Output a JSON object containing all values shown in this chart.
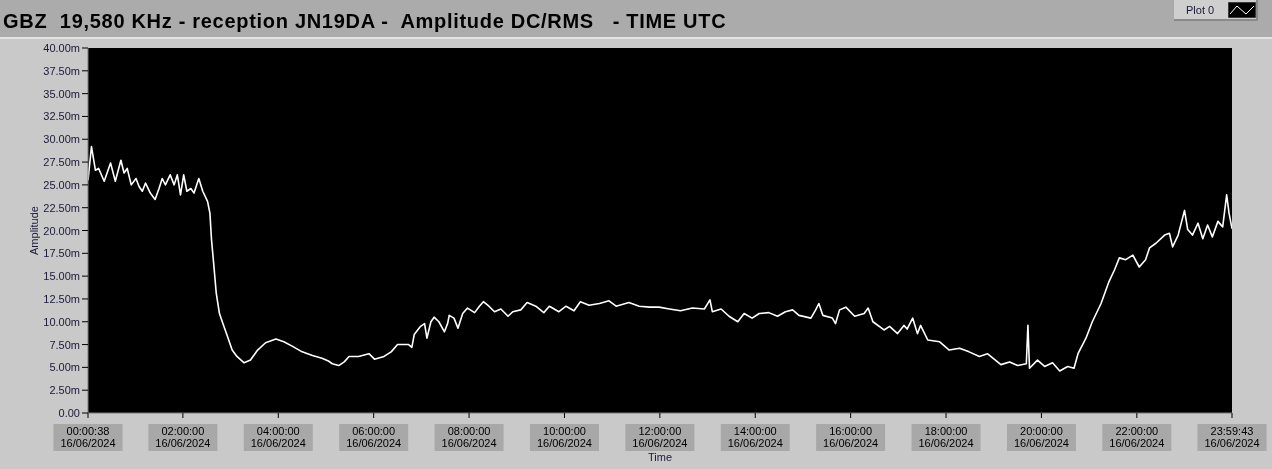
{
  "chart_data": {
    "type": "line",
    "title": "GBZ  19,580 KHz - reception JN19DA -  Amplitude DC/RMS   - TIME UTC",
    "xlabel": "Time",
    "ylabel": "Amplitude",
    "x": [
      "2024-06-16T00:00:38",
      "2024-06-16T00:05",
      "2024-06-16T00:10",
      "2024-06-16T00:14",
      "2024-06-16T00:21",
      "2024-06-16T00:29",
      "2024-06-16T00:35",
      "2024-06-16T00:42",
      "2024-06-16T00:46",
      "2024-06-16T00:50",
      "2024-06-16T00:55",
      "2024-06-16T01:01",
      "2024-06-16T01:05",
      "2024-06-16T01:09",
      "2024-06-16T01:13",
      "2024-06-16T01:19",
      "2024-06-16T01:25",
      "2024-06-16T01:30",
      "2024-06-16T01:34",
      "2024-06-16T01:38",
      "2024-06-16T01:44",
      "2024-06-16T01:49",
      "2024-06-16T01:53",
      "2024-06-16T01:57",
      "2024-06-16T02:01",
      "2024-06-16T02:05",
      "2024-06-16T02:10",
      "2024-06-16T02:14",
      "2024-06-16T02:20",
      "2024-06-16T02:25",
      "2024-06-16T02:31",
      "2024-06-16T02:34",
      "2024-06-16T02:36",
      "2024-06-16T02:39",
      "2024-06-16T02:42",
      "2024-06-16T02:46",
      "2024-06-16T02:50",
      "2024-06-16T02:56",
      "2024-06-16T03:02",
      "2024-06-16T03:08",
      "2024-06-16T03:17",
      "2024-06-16T03:25",
      "2024-06-16T03:34",
      "2024-06-16T03:44",
      "2024-06-16T03:57",
      "2024-06-16T04:07",
      "2024-06-16T04:18",
      "2024-06-16T04:30",
      "2024-06-16T04:43",
      "2024-06-16T04:55",
      "2024-06-16T05:03",
      "2024-06-16T05:08",
      "2024-06-16T05:16",
      "2024-06-16T05:23",
      "2024-06-16T05:29",
      "2024-06-16T05:41",
      "2024-06-16T05:54",
      "2024-06-16T06:01",
      "2024-06-16T06:13",
      "2024-06-16T06:22",
      "2024-06-16T06:30",
      "2024-06-16T06:44",
      "2024-06-16T06:48",
      "2024-06-16T06:51",
      "2024-06-16T06:59",
      "2024-06-16T07:04",
      "2024-06-16T07:07",
      "2024-06-16T07:12",
      "2024-06-16T07:16",
      "2024-06-16T07:22",
      "2024-06-16T07:29",
      "2024-06-16T07:33",
      "2024-06-16T07:35",
      "2024-06-16T07:41",
      "2024-06-16T07:46",
      "2024-06-16T07:52",
      "2024-06-16T07:58",
      "2024-06-16T08:07",
      "2024-06-16T08:13",
      "2024-06-16T08:18",
      "2024-06-16T08:25",
      "2024-06-16T08:32",
      "2024-06-16T08:40",
      "2024-06-16T08:49",
      "2024-06-16T08:55",
      "2024-06-16T09:05",
      "2024-06-16T09:13",
      "2024-06-16T09:24",
      "2024-06-16T09:34",
      "2024-06-16T09:41",
      "2024-06-16T09:53",
      "2024-06-16T10:02",
      "2024-06-16T10:12",
      "2024-06-16T10:20",
      "2024-06-16T10:31",
      "2024-06-16T10:44",
      "2024-06-16T10:56",
      "2024-06-16T11:05",
      "2024-06-16T11:21",
      "2024-06-16T11:34",
      "2024-06-16T11:47",
      "2024-06-16T11:59",
      "2024-06-16T12:12",
      "2024-06-16T12:26",
      "2024-06-16T12:41",
      "2024-06-16T12:56",
      "2024-06-16T13:03",
      "2024-06-16T13:06",
      "2024-06-16T13:17",
      "2024-06-16T13:27",
      "2024-06-16T13:38",
      "2024-06-16T13:46",
      "2024-06-16T13:56",
      "2024-06-16T14:05",
      "2024-06-16T14:17",
      "2024-06-16T14:28",
      "2024-06-16T14:38",
      "2024-06-16T14:47",
      "2024-06-16T14:55",
      "2024-06-16T15:10",
      "2024-06-16T15:16",
      "2024-06-16T15:20",
      "2024-06-16T15:25",
      "2024-06-16T15:37",
      "2024-06-16T15:41",
      "2024-06-16T15:46",
      "2024-06-16T15:54",
      "2024-06-16T16:05",
      "2024-06-16T16:17",
      "2024-06-16T16:22",
      "2024-06-16T16:28",
      "2024-06-16T16:42",
      "2024-06-16T16:49",
      "2024-06-16T16:59",
      "2024-06-16T17:07",
      "2024-06-16T17:11",
      "2024-06-16T17:18",
      "2024-06-16T17:24",
      "2024-06-16T17:28",
      "2024-06-16T17:37",
      "2024-06-16T17:52",
      "2024-06-16T18:04",
      "2024-06-16T18:17",
      "2024-06-16T18:29",
      "2024-06-16T18:42",
      "2024-06-16T18:52",
      "2024-06-16T19:09",
      "2024-06-16T19:20",
      "2024-06-16T19:30",
      "2024-06-16T19:41",
      "2024-06-16T19:43",
      "2024-06-16T19:45",
      "2024-06-16T19:55",
      "2024-06-16T20:04",
      "2024-06-16T20:14",
      "2024-06-16T20:23",
      "2024-06-16T20:33",
      "2024-06-16T20:41",
      "2024-06-16T20:46",
      "2024-06-16T20:56",
      "2024-06-16T21:04",
      "2024-06-16T21:15",
      "2024-06-16T21:25",
      "2024-06-16T21:32",
      "2024-06-16T21:38",
      "2024-06-16T21:46",
      "2024-06-16T21:55",
      "2024-06-16T22:03",
      "2024-06-16T22:11",
      "2024-06-16T22:16",
      "2024-06-16T22:24",
      "2024-06-16T22:35",
      "2024-06-16T22:41",
      "2024-06-16T22:45",
      "2024-06-16T22:52",
      "2024-06-16T23:00",
      "2024-06-16T23:04",
      "2024-06-16T23:10",
      "2024-06-16T23:17",
      "2024-06-16T23:23",
      "2024-06-16T23:29",
      "2024-06-16T23:35",
      "2024-06-16T23:42",
      "2024-06-16T23:48",
      "2024-06-16T23:53",
      "2024-06-16T23:56",
      "2024-06-16T23:59:43"
    ],
    "series": [
      {
        "name": "Plot 0",
        "color": "#ffffff",
        "values": [
          25.5,
          29.2,
          26.6,
          26.8,
          25.4,
          27.4,
          25.4,
          27.7,
          26.3,
          26.8,
          25.0,
          25.7,
          24.8,
          24.3,
          25.2,
          24.1,
          23.4,
          24.6,
          25.7,
          25.0,
          26.1,
          25.0,
          26.1,
          23.9,
          26.1,
          24.3,
          24.6,
          24.1,
          25.7,
          24.3,
          23.2,
          21.9,
          19.0,
          16.1,
          13.1,
          10.9,
          9.9,
          8.4,
          6.9,
          6.2,
          5.5,
          5.8,
          6.9,
          7.7,
          8.1,
          7.8,
          7.3,
          6.7,
          6.3,
          6.0,
          5.7,
          5.4,
          5.2,
          5.6,
          6.2,
          6.2,
          6.5,
          5.9,
          6.2,
          6.7,
          7.5,
          7.5,
          7.2,
          8.6,
          9.5,
          9.8,
          8.2,
          10.0,
          10.5,
          10.0,
          8.9,
          9.8,
          10.7,
          10.4,
          9.3,
          10.9,
          11.5,
          11.0,
          11.7,
          12.2,
          11.7,
          11.1,
          11.4,
          10.6,
          11.1,
          11.3,
          12.1,
          11.7,
          11.0,
          11.7,
          11.1,
          11.7,
          11.2,
          12.2,
          11.8,
          12.0,
          12.3,
          11.7,
          12.1,
          11.7,
          11.6,
          11.6,
          11.4,
          11.2,
          11.5,
          11.4,
          12.4,
          11.1,
          11.4,
          10.6,
          10.0,
          10.9,
          10.4,
          10.9,
          11.0,
          10.6,
          11.1,
          11.3,
          10.7,
          10.4,
          11.3,
          12.0,
          10.7,
          10.4,
          9.8,
          11.3,
          11.6,
          10.6,
          10.9,
          11.5,
          10.0,
          9.1,
          9.5,
          8.7,
          9.6,
          9.2,
          10.4,
          8.7,
          9.6,
          8.0,
          7.8,
          6.9,
          7.1,
          6.7,
          6.2,
          6.5,
          5.3,
          5.6,
          5.2,
          5.4,
          9.6,
          4.9,
          5.8,
          5.1,
          5.5,
          4.6,
          5.1,
          4.9,
          6.5,
          8.2,
          10.0,
          12.0,
          14.4,
          15.7,
          17.0,
          16.8,
          17.3,
          16.0,
          16.8,
          18.1,
          18.6,
          19.5,
          19.7,
          18.2,
          19.5,
          22.2,
          20.1,
          19.5,
          20.8,
          19.1,
          20.6,
          19.3,
          21.0,
          20.4,
          23.9,
          21.9,
          20.2
        ]
      }
    ],
    "xlim": [
      "2024-06-16T00:00:38",
      "2024-06-16T23:59:43"
    ],
    "xticks": [
      {
        "value": "2024-06-16T00:00:38",
        "label": "00:00:38\n16/06/2024"
      },
      {
        "value": "2024-06-16T02:00",
        "label": "02:00:00\n16/06/2024"
      },
      {
        "value": "2024-06-16T04:00",
        "label": "04:00:00\n16/06/2024"
      },
      {
        "value": "2024-06-16T06:00",
        "label": "06:00:00\n16/06/2024"
      },
      {
        "value": "2024-06-16T08:00",
        "label": "08:00:00\n16/06/2024"
      },
      {
        "value": "2024-06-16T10:00",
        "label": "10:00:00\n16/06/2024"
      },
      {
        "value": "2024-06-16T12:00",
        "label": "12:00:00\n16/06/2024"
      },
      {
        "value": "2024-06-16T14:00",
        "label": "14:00:00\n16/06/2024"
      },
      {
        "value": "2024-06-16T16:00",
        "label": "16:00:00\n16/06/2024"
      },
      {
        "value": "2024-06-16T18:00",
        "label": "18:00:00\n16/06/2024"
      },
      {
        "value": "2024-06-16T20:00",
        "label": "20:00:00\n16/06/2024"
      },
      {
        "value": "2024-06-16T22:00",
        "label": "22:00:00\n16/06/2024"
      },
      {
        "value": "2024-06-16T23:59:43",
        "label": "23:59:43\n16/06/2024"
      }
    ],
    "ylim": [
      0,
      40
    ],
    "yticks": [
      {
        "value": 0,
        "label": "0.00"
      },
      {
        "value": 2.5,
        "label": "2.50m"
      },
      {
        "value": 5,
        "label": "5.00m"
      },
      {
        "value": 7.5,
        "label": "7.50m"
      },
      {
        "value": 10,
        "label": "10.00m"
      },
      {
        "value": 12.5,
        "label": "12.50m"
      },
      {
        "value": 15,
        "label": "15.00m"
      },
      {
        "value": 17.5,
        "label": "17.50m"
      },
      {
        "value": 20,
        "label": "20.00m"
      },
      {
        "value": 22.5,
        "label": "22.50m"
      },
      {
        "value": 25,
        "label": "25.00m"
      },
      {
        "value": 27.5,
        "label": "27.50m"
      },
      {
        "value": 30,
        "label": "30.00m"
      },
      {
        "value": 32.5,
        "label": "32.50m"
      },
      {
        "value": 35,
        "label": "35.00m"
      },
      {
        "value": 37.5,
        "label": "37.50m"
      },
      {
        "value": 40,
        "label": "40.00m"
      }
    ],
    "legend": "top right"
  }
}
